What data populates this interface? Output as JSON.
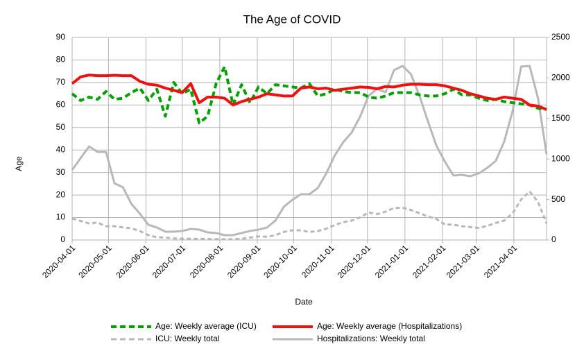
{
  "chart_data": {
    "type": "line",
    "title": "The Age of COVID",
    "x_label": "Date",
    "y_label": "Age",
    "x": [
      "2020-04-01",
      "2020-04-08",
      "2020-04-15",
      "2020-04-22",
      "2020-04-29",
      "2020-05-06",
      "2020-05-13",
      "2020-05-20",
      "2020-05-27",
      "2020-06-03",
      "2020-06-10",
      "2020-06-17",
      "2020-06-24",
      "2020-07-01",
      "2020-07-08",
      "2020-07-15",
      "2020-07-22",
      "2020-07-29",
      "2020-08-05",
      "2020-08-12",
      "2020-08-19",
      "2020-08-26",
      "2020-09-02",
      "2020-09-09",
      "2020-09-16",
      "2020-09-23",
      "2020-09-30",
      "2020-10-07",
      "2020-10-14",
      "2020-10-21",
      "2020-10-28",
      "2020-11-04",
      "2020-11-11",
      "2020-11-18",
      "2020-11-25",
      "2020-12-02",
      "2020-12-09",
      "2020-12-16",
      "2020-12-23",
      "2020-12-30",
      "2021-01-06",
      "2021-01-13",
      "2021-01-20",
      "2021-01-27",
      "2021-02-03",
      "2021-02-10",
      "2021-02-17",
      "2021-02-24",
      "2021-03-03",
      "2021-03-10",
      "2021-03-17",
      "2021-03-24",
      "2021-03-31",
      "2021-04-07",
      "2021-04-14",
      "2021-04-21",
      "2021-04-28"
    ],
    "xlim": [
      "2020-04-01",
      "2021-04-28"
    ],
    "xticks": [
      "2020-04-01",
      "2020-05-01",
      "2020-06-01",
      "2020-07-01",
      "2020-08-01",
      "2020-09-01",
      "2020-10-01",
      "2020-11-01",
      "2020-12-01",
      "2021-01-01",
      "2021-02-01",
      "2021-03-01",
      "2021-04-01"
    ],
    "ylim": [
      0,
      90
    ],
    "yticks": [
      0,
      10,
      20,
      30,
      40,
      50,
      60,
      70,
      80,
      90
    ],
    "y2lim": [
      0,
      2500
    ],
    "y2ticks": [
      0,
      500,
      1000,
      1500,
      2000,
      2500
    ],
    "grid": true,
    "legend": "bottom",
    "series": [
      {
        "name": "Age: Weekly average (ICU)",
        "color": "#00a000",
        "dashed": true,
        "values": [
          65,
          62,
          63.5,
          62.5,
          66,
          62.5,
          63,
          65.5,
          67.5,
          62,
          67,
          55,
          70,
          65,
          67,
          52,
          55,
          69.5,
          77,
          60,
          69,
          61,
          68,
          65,
          69,
          68.5,
          68,
          67.5,
          69.5,
          64,
          65,
          67,
          66,
          65.5,
          65.5,
          63.5,
          63,
          64,
          65.5,
          65.5,
          65.5,
          64.5,
          64,
          64,
          65,
          67,
          64.5,
          64.5,
          63,
          62,
          62.5,
          61.5,
          61,
          60.5,
          60,
          58.5,
          58
        ]
      },
      {
        "name": "Age: Weekly average (Hospitalizations)",
        "color": "#ee1111",
        "dashed": false,
        "values": [
          69.5,
          72.5,
          73.3,
          73,
          73,
          73.2,
          73,
          73,
          70.5,
          69.2,
          68.8,
          67.5,
          66.5,
          65.5,
          69.5,
          61,
          63.5,
          63.5,
          63,
          60,
          61.5,
          62.5,
          63.5,
          65,
          64.5,
          64,
          64,
          67.5,
          68,
          67.2,
          67.5,
          66.5,
          67,
          67.5,
          68,
          67.8,
          67.2,
          68.2,
          68,
          68.8,
          69.2,
          69.2,
          69,
          69,
          68.5,
          67.5,
          66.5,
          65,
          64,
          63,
          62.5,
          63.5,
          63,
          62.5,
          60,
          59.5,
          58
        ]
      },
      {
        "name": "ICU: Weekly total",
        "color": "#b8b8b8",
        "dashed": true,
        "axis": "y2",
        "values": [
          265,
          235,
          205,
          215,
          170,
          170,
          155,
          145,
          110,
          60,
          34,
          30,
          20,
          17,
          15,
          14,
          14,
          10,
          10,
          10,
          15,
          30,
          45,
          40,
          60,
          100,
          120,
          120,
          100,
          110,
          140,
          185,
          220,
          240,
          280,
          340,
          320,
          350,
          395,
          400,
          370,
          330,
          290,
          260,
          190,
          190,
          170,
          160,
          150,
          175,
          210,
          240,
          330,
          500,
          600,
          470,
          205
        ]
      },
      {
        "name": "Hospitalizations: Weekly total",
        "color": "#b8b8b8",
        "dashed": false,
        "axis": "y2",
        "values": [
          865,
          1010,
          1155,
          1087,
          1087,
          700,
          650,
          445,
          325,
          188,
          155,
          103,
          103,
          111,
          137,
          128,
          94,
          86,
          60,
          60,
          86,
          111,
          128,
          154,
          240,
          411,
          496,
          565,
          565,
          642,
          822,
          1044,
          1207,
          1327,
          1524,
          1780,
          1866,
          1823,
          2097,
          2149,
          2046,
          1780,
          1464,
          1164,
          967,
          796,
          805,
          788,
          822,
          890,
          976,
          1215,
          1592,
          2140,
          2149,
          1746,
          1061
        ]
      }
    ]
  }
}
